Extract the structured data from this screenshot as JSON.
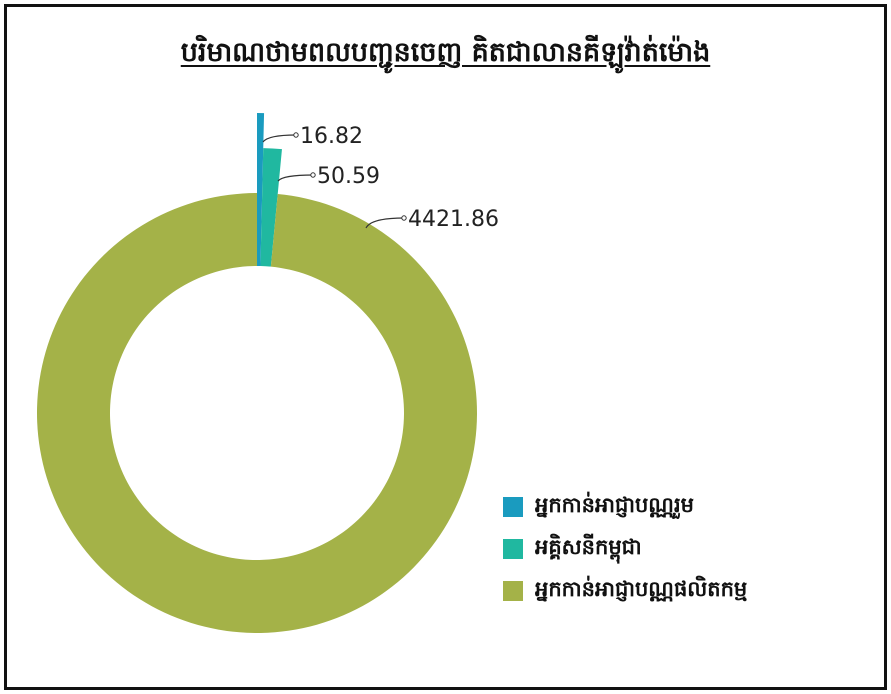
{
  "chart_data": {
    "type": "pie",
    "title": "បរិមាណថាមពលបញ្ជូនចេញ គិតជាលានគីឡូវ៉ាត់ម៉ោង",
    "categories": [
      "អ្នកកាន់អាជ្ញាបណ្ណរួម",
      "អគ្គិសនីកម្ពុជា",
      "អ្នកកាន់អាជ្ញាបណ្ណផលិតកម្ម"
    ],
    "values": [
      16.82,
      50.59,
      4421.86
    ],
    "data_labels": [
      "16.82",
      "50.59",
      "4421.86"
    ],
    "colors": [
      "#1a9bbf",
      "#20b8a0",
      "#a4b248"
    ],
    "donut": true,
    "legend_position": "bottom-right"
  }
}
